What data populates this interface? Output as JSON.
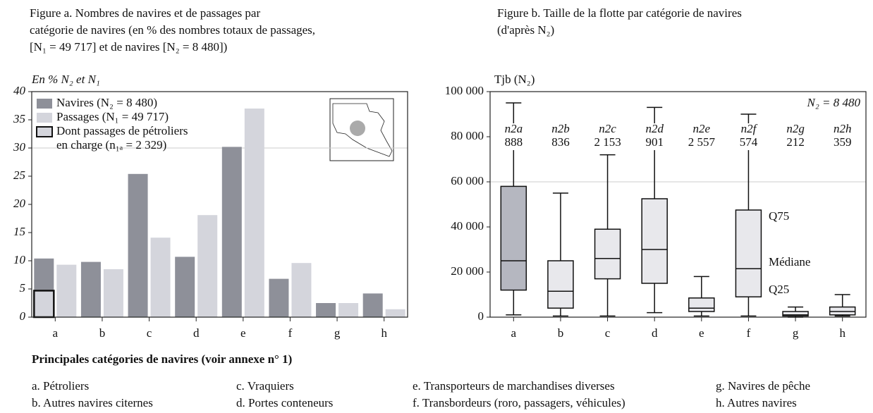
{
  "chart_data": [
    {
      "type": "bar",
      "title": [
        "Figure a. Nombres de navires et de passages par",
        "catégorie de navires (en % des nombres totaux de passages,",
        "[N₁ = 49 717] et de navires [N₂ = 8 480])"
      ],
      "y_label": "En % N₂ et N₁",
      "categories": [
        "a",
        "b",
        "c",
        "d",
        "e",
        "f",
        "g",
        "h"
      ],
      "series": [
        {
          "name": "Navires (N₂ = 8 480)",
          "color": "#8e9099",
          "values": [
            10.4,
            9.8,
            25.4,
            10.7,
            30.2,
            6.8,
            2.5,
            4.2
          ]
        },
        {
          "name": "Passages (N₁ = 49 717)",
          "color": "#d4d5dc",
          "values": [
            9.3,
            8.5,
            14.1,
            18.1,
            37,
            9.6,
            2.5,
            1.4
          ]
        },
        {
          "name": [
            "Dont passages de pétroliers",
            "en charge (n₁ₐ = 2 329)"
          ],
          "color": "#d4d5dc",
          "values": [
            4.7,
            null,
            null,
            null,
            null,
            null,
            null,
            null
          ]
        }
      ],
      "ylim": [
        0,
        40
      ],
      "yticks": [
        0,
        5,
        10,
        15,
        20,
        25,
        30,
        35,
        40
      ],
      "grid_values": [
        30
      ]
    },
    {
      "type": "box",
      "title": [
        "Figure b. Taille de la flotte par catégorie de navires",
        "(d'après N₂)"
      ],
      "y_label": "Tjb (N₂)",
      "categories": [
        "a",
        "b",
        "c",
        "d",
        "e",
        "f",
        "g",
        "h"
      ],
      "n_names": [
        "n2a",
        "n2b",
        "n2c",
        "n2d",
        "n2e",
        "n2f",
        "n2g",
        "n2h"
      ],
      "n_values": [
        "888",
        "836",
        "2 153",
        "901",
        "2 557",
        "574",
        "212",
        "359"
      ],
      "colors": [
        "#b5b7c0",
        "#e8e8ec",
        "#e8e8ec",
        "#e8e8ec",
        "#e8e8ec",
        "#e8e8ec",
        "#e8e8ec",
        "#e8e8ec"
      ],
      "boxes": [
        {
          "low": 1000,
          "q1": 12000,
          "median": 25000,
          "q3": 58000,
          "high": 95000
        },
        {
          "low": 500,
          "q1": 4000,
          "median": 11500,
          "q3": 25000,
          "high": 55000
        },
        {
          "low": 500,
          "q1": 17000,
          "median": 26000,
          "q3": 39000,
          "high": 72000
        },
        {
          "low": 2000,
          "q1": 15000,
          "median": 30000,
          "q3": 52500,
          "high": 93000
        },
        {
          "low": 500,
          "q1": 2500,
          "median": 4000,
          "q3": 8500,
          "high": 18000
        },
        {
          "low": 500,
          "q1": 9000,
          "median": 21500,
          "q3": 47500,
          "high": 90000
        },
        {
          "low": 0,
          "q1": 500,
          "median": 1000,
          "q3": 2500,
          "high": 4500
        },
        {
          "low": 500,
          "q1": 1000,
          "median": 2500,
          "q3": 4500,
          "high": 10000
        }
      ],
      "annotations": [
        "N₂ = 8 480",
        "Q75",
        "Médiane",
        "Q25"
      ],
      "ylim": [
        0,
        100000
      ],
      "yticks": [
        0,
        {
          "value": 20000,
          "label": "20 000"
        },
        {
          "value": 40000,
          "label": "40 000"
        },
        {
          "value": 60000,
          "label": "60 000"
        },
        {
          "value": 80000,
          "label": "80 000"
        },
        {
          "value": 100000,
          "label": "100 000"
        }
      ],
      "grid_values": [
        60000
      ]
    }
  ],
  "legend": {
    "title": "Principales catégories de navires (voir annexe n° 1)",
    "items": [
      "a. Pétroliers",
      "b. Autres navires citernes",
      "c. Vraquiers",
      "d. Portes conteneurs",
      "e. Transporteurs de marchandises diverses",
      "f. Transbordeurs (roro, passagers, véhicules)",
      "g. Navires de pêche",
      "h. Autres navires"
    ]
  }
}
